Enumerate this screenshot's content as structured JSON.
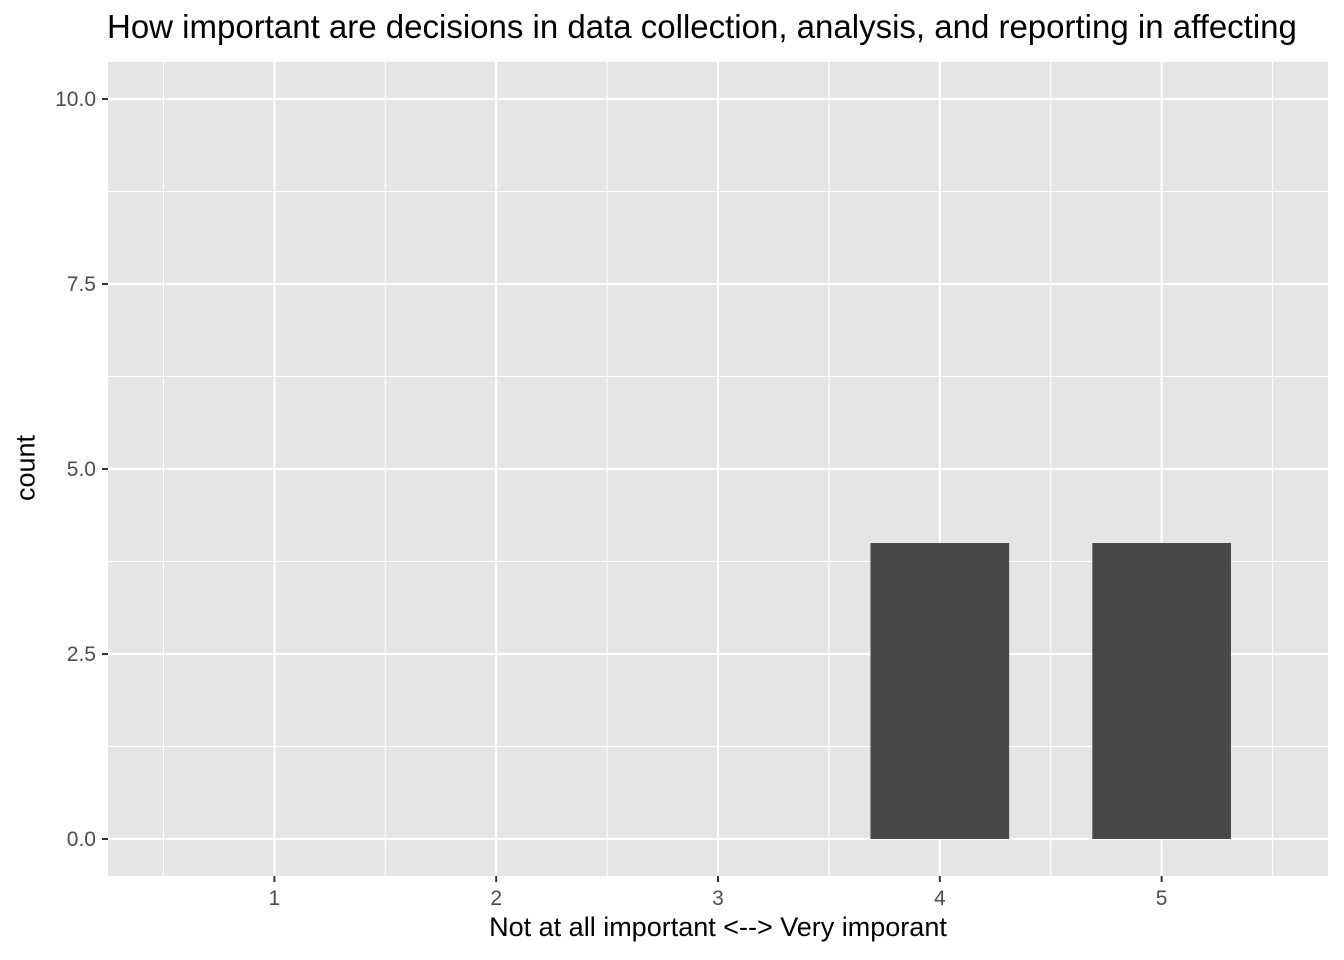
{
  "chart_data": {
    "type": "bar",
    "title": "How important are decisions in data collection, analysis, and reporting in affecting",
    "xlabel": "Not at all important <--> Very imporant",
    "ylabel": "count",
    "categories": [
      "1",
      "2",
      "3",
      "4",
      "5"
    ],
    "x_values": [
      4,
      5
    ],
    "values": [
      4,
      4
    ],
    "bar_width": 0.625,
    "xlim": [
      0.25,
      5.75
    ],
    "ylim": [
      -0.5,
      10.5
    ],
    "x_ticks": [
      1,
      2,
      3,
      4,
      5
    ],
    "y_ticks": [
      0,
      2.5,
      5,
      7.5,
      10
    ],
    "y_tick_labels": [
      "0.0",
      "2.5",
      "5.0",
      "7.5",
      "10.0"
    ],
    "grid": true,
    "legend": "none",
    "colors": {
      "panel": "#e5e5e5",
      "grid": "#ffffff",
      "bar": "#484848",
      "tick_text": "#4d4d4d",
      "tick_mark": "#333333"
    }
  }
}
